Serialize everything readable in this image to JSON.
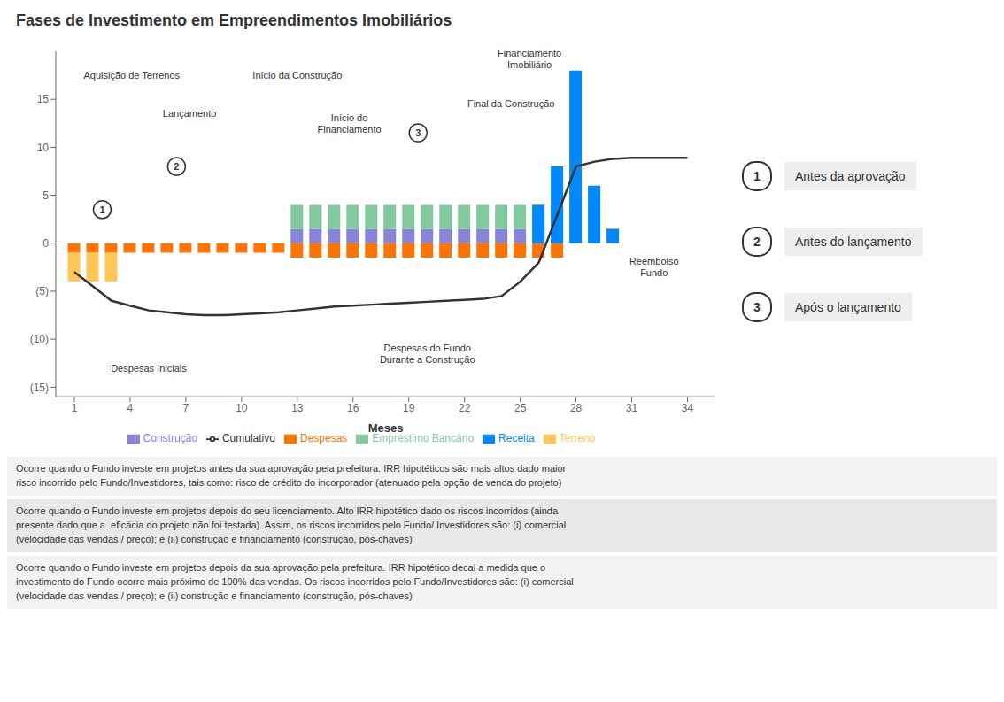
{
  "chart_data": {
    "type": "bar",
    "title": "Fases de Investimento em Empreendimentos Imobiliários",
    "xlabel": "Meses",
    "xlim": [
      0,
      35.5
    ],
    "xticks": [
      1,
      4,
      7,
      10,
      13,
      16,
      19,
      22,
      25,
      28,
      31,
      34
    ],
    "ylim": [
      -16,
      20
    ],
    "yticks": [
      {
        "value": -15,
        "label": "(15)"
      },
      {
        "value": -10,
        "label": "(10)"
      },
      {
        "value": -5,
        "label": "(5)"
      },
      0,
      5,
      10,
      15
    ],
    "stacked": true,
    "grid": false,
    "legend": "bottom",
    "series": [
      {
        "name": "Construção",
        "type": "bar",
        "stacked": true,
        "color": "#8884d8",
        "x": [
          13,
          14,
          15,
          16,
          17,
          18,
          19,
          20,
          21,
          22,
          23,
          24,
          25,
          26,
          27
        ],
        "values": [
          1.5,
          1.5,
          1.5,
          1.5,
          1.5,
          1.5,
          1.5,
          1.5,
          1.5,
          1.5,
          1.5,
          1.5,
          1.5,
          1.5,
          1.5
        ]
      },
      {
        "name": "Empréstimo Bancário",
        "type": "bar",
        "stacked": true,
        "color": "#82ca9d",
        "x": [
          13,
          14,
          15,
          16,
          17,
          18,
          19,
          20,
          21,
          22,
          23,
          24,
          25,
          26,
          27
        ],
        "values": [
          2.5,
          2.5,
          2.5,
          2.5,
          2.5,
          2.5,
          2.5,
          2.5,
          2.5,
          2.5,
          2.5,
          2.5,
          2.5,
          2.5,
          2.5
        ]
      },
      {
        "name": "Despesas",
        "type": "bar",
        "stacked": true,
        "color": "#ff7300",
        "x": [
          1,
          2,
          3,
          4,
          5,
          6,
          7,
          8,
          9,
          10,
          11,
          12,
          13,
          14,
          15,
          16,
          17,
          18,
          19,
          20,
          21,
          22,
          23,
          24,
          25,
          26,
          27
        ],
        "values": [
          -1.0,
          -1.0,
          -1.0,
          -1.0,
          -1.0,
          -1.0,
          -1.0,
          -1.0,
          -1.0,
          -1.0,
          -1.0,
          -1.0,
          -1.5,
          -1.5,
          -1.5,
          -1.5,
          -1.5,
          -1.5,
          -1.5,
          -1.5,
          -1.5,
          -1.5,
          -1.5,
          -1.5,
          -1.5,
          -1.5,
          -1.5
        ]
      },
      {
        "name": "Terreno",
        "type": "bar",
        "stacked": true,
        "color": "#ffc658",
        "x": [
          1,
          2,
          3
        ],
        "values": [
          -3.0,
          -3.0,
          -3.0
        ]
      },
      {
        "name": "Receita",
        "type": "bar",
        "stacked": false,
        "color": "#0088fe",
        "x": [
          26,
          27,
          28,
          29,
          30
        ],
        "values": [
          4.0,
          8.0,
          18.0,
          6.0,
          1.5
        ]
      },
      {
        "name": "Cumulativo",
        "type": "line",
        "color": "#333333",
        "x": [
          1,
          2,
          3,
          4,
          5,
          6,
          7,
          8,
          9,
          10,
          11,
          12,
          13,
          14,
          15,
          16,
          17,
          18,
          19,
          20,
          21,
          22,
          23,
          24,
          25,
          26,
          27,
          28,
          29,
          30,
          31,
          32,
          33,
          34
        ],
        "values": [
          -3.0,
          -4.5,
          -6.0,
          -6.5,
          -7.0,
          -7.2,
          -7.4,
          -7.5,
          -7.5,
          -7.4,
          -7.3,
          -7.2,
          -7.0,
          -6.8,
          -6.6,
          -6.5,
          -6.4,
          -6.3,
          -6.2,
          -6.1,
          -6.0,
          -5.9,
          -5.8,
          -5.5,
          -4.0,
          -2.0,
          3.0,
          8.0,
          8.5,
          8.8,
          8.9,
          8.9,
          8.9,
          8.9
        ]
      }
    ],
    "annotations": [
      {
        "text": "Aquisição de Terrenos",
        "x": 1.5,
        "y": 17.5
      },
      {
        "text": "Lançamento",
        "x": 7.2,
        "y": 13.5
      },
      {
        "text": "Início da Construção",
        "x": 13.0,
        "y": 17.5
      },
      {
        "text": "Início do\nFinanciamento",
        "x": 15.8,
        "y": 12.5
      },
      {
        "text": "Financiamento\nImobiliário",
        "x": 25.5,
        "y": 19.2
      },
      {
        "text": "Final da Construção",
        "x": 24.5,
        "y": 14.5
      },
      {
        "text": "Reembolso\nFundo",
        "x": 32.2,
        "y": -2.5
      },
      {
        "text": "Despesas Iniciais",
        "x": 5.0,
        "y": -13.0
      },
      {
        "text": "Despesas do Fundo\nDurante a Construção",
        "x": 20.0,
        "y": -11.5
      }
    ],
    "phases": [
      {
        "num": "1",
        "label": "Antes da aprovação",
        "x": 2.5,
        "y": 3.5,
        "text": "Ocorre quando o Fundo investe em projetos antes da sua aprovação pela prefeitura. IRR hipotéticos são mais altos dado maior\nrisco incorrido pelo Fundo/Investidores, tais como: risco de crédito do incorporador (atenuado pela opção de venda do projeto)"
      },
      {
        "num": "2",
        "label": "Antes do lançamento",
        "x": 6.5,
        "y": 8.0,
        "text": "Ocorre quando o Fundo investe em projetos depois do seu licenciamento. Alto IRR hipotético dado os riscos incorridos (ainda\npresente dado que a  eficácia do projeto não foi testada). Assim, os riscos incorridos pelo Fundo/ Investidores são: (i) comercial\n(velocidade das vendas / preço); e (ii) construção e financiamento (construção, pós-chaves)"
      },
      {
        "num": "3",
        "label": "Após o lançamento",
        "x": 19.5,
        "y": 11.5,
        "text": "Ocorre quando o Fundo investe em projetos depois da sua aprovação pela prefeitura. IRR hipotético decai a medida que o\ninvestimento do Fundo ocorre mais próximo de 100% das vendas. Os riscos incorridos pelo Fundo/Investidores são: (i) comercial\n(velocidade das vendas / preço); e (ii) construção e financiamento (construção, pós-chaves)"
      }
    ]
  }
}
